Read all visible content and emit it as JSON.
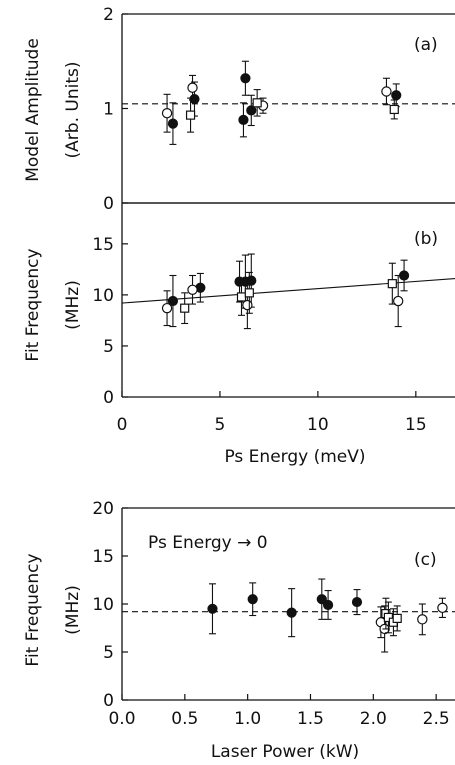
{
  "chart_data": [
    {
      "panel": "(a)",
      "type": "scatter",
      "title": "",
      "ylabel_line1": "Model Amplitude",
      "ylabel_line2": "(Arb. Units)",
      "xlabel": "",
      "xlim": [
        0,
        17
      ],
      "ylim": [
        0,
        2
      ],
      "yticks": [
        0,
        1,
        2
      ],
      "xticks": [],
      "reference_line": {
        "style": "dashed",
        "y": 1.05
      },
      "series": [
        {
          "marker": "filled-circle",
          "points": [
            {
              "x": 2.6,
              "y": 0.84,
              "err": 0.22
            },
            {
              "x": 3.7,
              "y": 1.1,
              "err": 0.18
            },
            {
              "x": 6.2,
              "y": 0.88,
              "err": 0.18
            },
            {
              "x": 6.3,
              "y": 1.32,
              "err": 0.18
            },
            {
              "x": 6.6,
              "y": 0.98,
              "err": 0.16
            },
            {
              "x": 14.0,
              "y": 1.14,
              "err": 0.12
            }
          ]
        },
        {
          "marker": "open-circle",
          "points": [
            {
              "x": 2.3,
              "y": 0.95,
              "err": 0.2
            },
            {
              "x": 3.6,
              "y": 1.22,
              "err": 0.13
            },
            {
              "x": 7.2,
              "y": 1.03,
              "err": 0.08
            },
            {
              "x": 13.5,
              "y": 1.18,
              "err": 0.14
            }
          ]
        },
        {
          "marker": "open-square",
          "points": [
            {
              "x": 3.5,
              "y": 0.93,
              "err": 0.18
            },
            {
              "x": 6.9,
              "y": 1.06,
              "err": 0.14
            },
            {
              "x": 13.9,
              "y": 0.99,
              "err": 0.1
            }
          ]
        }
      ]
    },
    {
      "panel": "(b)",
      "type": "scatter",
      "title": "",
      "ylabel_line1": "Fit Frequency",
      "ylabel_line2": "(MHz)",
      "xlabel": "Ps Energy (meV)",
      "xlim": [
        0,
        17
      ],
      "ylim": [
        0,
        19
      ],
      "yticks": [
        0,
        5,
        10,
        15
      ],
      "xticks": [
        0,
        5,
        10,
        15
      ],
      "reference_line": {
        "style": "solid",
        "from": [
          0,
          9.2
        ],
        "to": [
          17,
          11.6
        ]
      },
      "series": [
        {
          "marker": "filled-circle",
          "points": [
            {
              "x": 2.6,
              "y": 9.4,
              "err": 2.5
            },
            {
              "x": 4.0,
              "y": 10.7,
              "err": 1.4
            },
            {
              "x": 6.0,
              "y": 11.3,
              "err": 2.0
            },
            {
              "x": 6.3,
              "y": 11.3,
              "err": 2.6
            },
            {
              "x": 6.6,
              "y": 11.4,
              "err": 2.6
            },
            {
              "x": 14.4,
              "y": 11.9,
              "err": 1.5
            }
          ]
        },
        {
          "marker": "open-circle",
          "points": [
            {
              "x": 2.3,
              "y": 8.7,
              "err": 1.7
            },
            {
              "x": 3.6,
              "y": 10.5,
              "err": 1.4
            },
            {
              "x": 6.4,
              "y": 9.0,
              "err": 2.3
            },
            {
              "x": 14.1,
              "y": 9.4,
              "err": 2.5
            }
          ]
        },
        {
          "marker": "open-square",
          "points": [
            {
              "x": 3.2,
              "y": 8.7,
              "err": 1.5
            },
            {
              "x": 6.1,
              "y": 9.8,
              "err": 1.8
            },
            {
              "x": 6.5,
              "y": 10.2,
              "err": 2.0
            },
            {
              "x": 13.8,
              "y": 11.1,
              "err": 2.0
            }
          ]
        }
      ]
    },
    {
      "panel": "(c)",
      "type": "scatter",
      "title": "",
      "annotation": "Ps Energy → 0",
      "ylabel_line1": "Fit Frequency",
      "ylabel_line2": "(MHz)",
      "xlabel": "Laser Power (kW)",
      "xlim": [
        0.0,
        2.65
      ],
      "ylim": [
        0,
        20
      ],
      "yticks": [
        0,
        5,
        10,
        15,
        20
      ],
      "xticks": [
        "0.0",
        "0.5",
        "1.0",
        "1.5",
        "2.0",
        "2.5"
      ],
      "reference_line": {
        "style": "dashed",
        "y": 9.2
      },
      "series": [
        {
          "marker": "filled-circle",
          "points": [
            {
              "x": 0.72,
              "y": 9.5,
              "err": 2.6
            },
            {
              "x": 1.04,
              "y": 10.5,
              "err": 1.7
            },
            {
              "x": 1.35,
              "y": 9.1,
              "err": 2.5
            },
            {
              "x": 1.59,
              "y": 10.5,
              "err": 2.1
            },
            {
              "x": 1.64,
              "y": 9.9,
              "err": 1.5
            },
            {
              "x": 1.87,
              "y": 10.2,
              "err": 1.3
            }
          ]
        },
        {
          "marker": "open-circle",
          "points": [
            {
              "x": 2.06,
              "y": 8.1,
              "err": 1.6
            },
            {
              "x": 2.09,
              "y": 7.4,
              "err": 2.4
            },
            {
              "x": 2.39,
              "y": 8.4,
              "err": 1.6
            },
            {
              "x": 2.55,
              "y": 9.6,
              "err": 1.0
            }
          ]
        },
        {
          "marker": "open-square",
          "points": [
            {
              "x": 2.1,
              "y": 9.0,
              "err": 1.6
            },
            {
              "x": 2.12,
              "y": 8.6,
              "err": 1.6
            },
            {
              "x": 2.16,
              "y": 8.1,
              "err": 1.4
            },
            {
              "x": 2.19,
              "y": 8.5,
              "err": 1.3
            }
          ]
        }
      ]
    }
  ]
}
